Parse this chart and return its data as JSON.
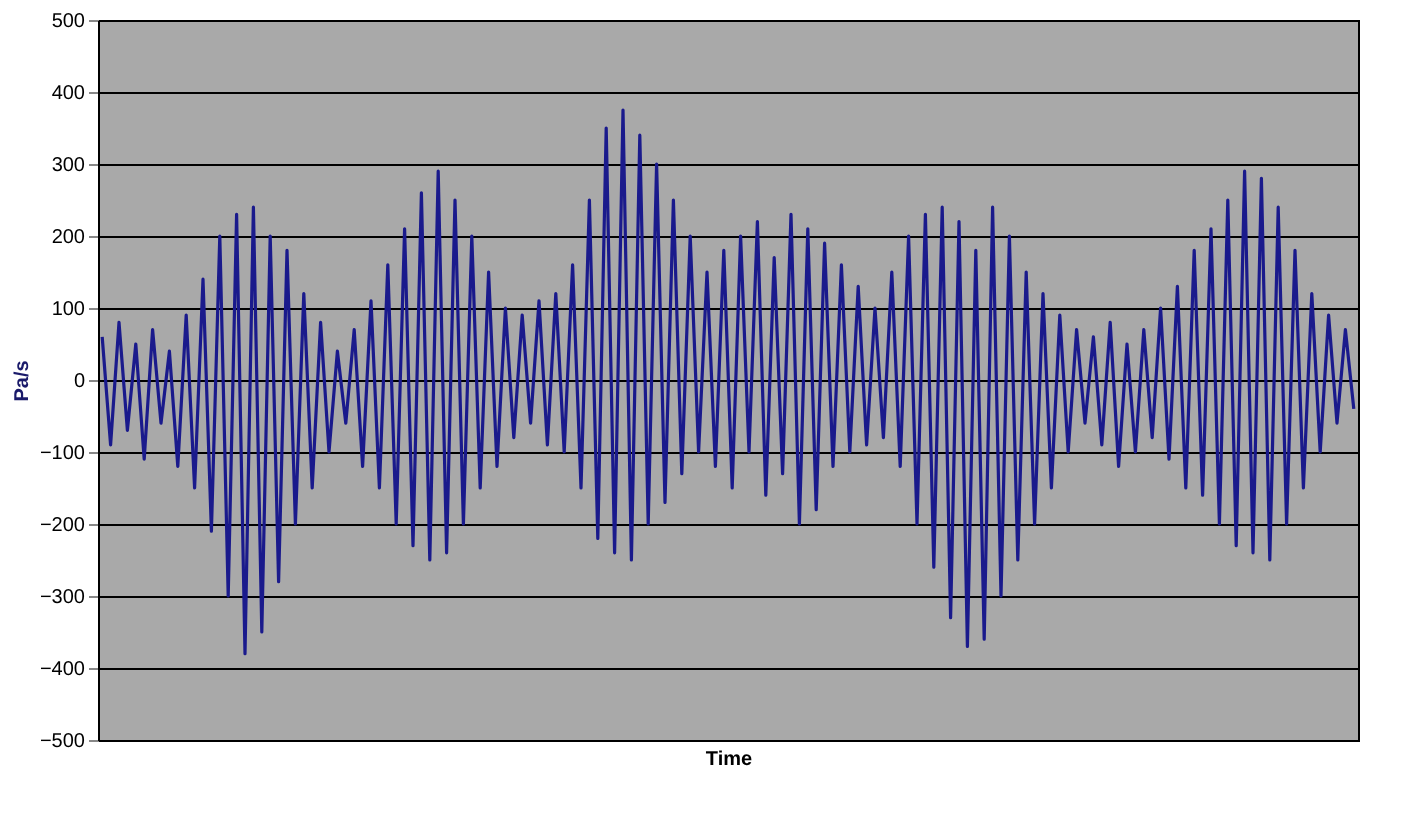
{
  "chart_data": {
    "type": "line",
    "xlabel": "Time",
    "ylabel": "Pa/s",
    "tick_labels": "y",
    "categories": [
      null,
      null,
      null,
      null,
      null,
      null,
      null,
      null,
      null,
      null,
      null,
      null,
      null,
      null,
      null,
      null,
      null,
      null,
      null,
      null,
      null,
      null,
      null,
      null,
      null,
      null,
      null,
      null,
      null,
      null,
      null,
      null,
      null,
      null,
      null,
      null,
      null,
      null,
      null,
      null,
      null,
      null,
      null,
      null,
      null,
      null,
      null,
      null,
      null,
      null,
      null,
      null,
      null,
      null,
      null,
      null,
      null,
      null,
      null,
      null,
      null,
      null,
      null,
      null,
      null,
      null,
      null,
      null,
      null,
      null,
      null,
      null,
      null,
      null,
      null,
      null,
      null,
      null,
      null,
      null,
      null,
      null,
      null,
      null,
      null,
      null,
      null,
      null,
      null,
      null,
      null,
      null,
      null,
      null,
      null,
      null,
      null,
      null,
      null,
      null,
      null,
      null,
      null,
      null,
      null,
      null,
      null,
      null,
      null,
      null,
      null,
      null,
      null,
      null,
      null,
      null,
      null,
      null,
      null,
      null,
      null,
      null,
      null,
      null,
      null,
      null,
      null,
      null,
      null,
      null,
      null,
      null,
      null,
      null,
      null,
      null,
      null,
      null,
      null,
      null,
      null,
      null,
      null,
      null,
      null,
      null,
      null,
      null,
      null,
      null
    ],
    "series": [
      {
        "color": "#1a1a8c",
        "values": [
          60,
          -90,
          80,
          -70,
          50,
          -110,
          70,
          -60,
          40,
          -120,
          90,
          -150,
          140,
          -210,
          200,
          -300,
          230,
          -380,
          240,
          -350,
          200,
          -280,
          180,
          -200,
          120,
          -150,
          80,
          -100,
          40,
          -60,
          70,
          -120,
          110,
          -150,
          160,
          -200,
          210,
          -230,
          260,
          -250,
          290,
          -240,
          250,
          -200,
          200,
          -150,
          150,
          -120,
          100,
          -80,
          90,
          -60,
          110,
          -90,
          120,
          -100,
          160,
          -150,
          250,
          -220,
          350,
          -240,
          375,
          -250,
          340,
          -200,
          300,
          -170,
          250,
          -130,
          200,
          -100,
          150,
          -120,
          180,
          -150,
          200,
          -100,
          220,
          -160,
          170,
          -130,
          230,
          -200,
          210,
          -180,
          190,
          -120,
          160,
          -100,
          130,
          -90,
          100,
          -80,
          150,
          -120,
          200,
          -200,
          230,
          -260,
          240,
          -330,
          220,
          -370,
          180,
          -360,
          240,
          -300,
          200,
          -250,
          150,
          -200,
          120,
          -150,
          90,
          -100,
          70,
          -60,
          60,
          -90,
          80,
          -120,
          50,
          -100,
          70,
          -80,
          100,
          -110,
          130,
          -150,
          180,
          -160,
          210,
          -200,
          250,
          -230,
          290,
          -240,
          280,
          -250,
          240,
          -200,
          180,
          -150,
          120,
          -100,
          90,
          -60,
          70,
          -40
        ]
      }
    ],
    "ylim": [
      -500,
      500
    ],
    "yticks": [
      -500,
      -400,
      -300,
      -200,
      -100,
      0,
      100,
      200,
      300,
      400,
      500
    ],
    "grid": "y"
  }
}
